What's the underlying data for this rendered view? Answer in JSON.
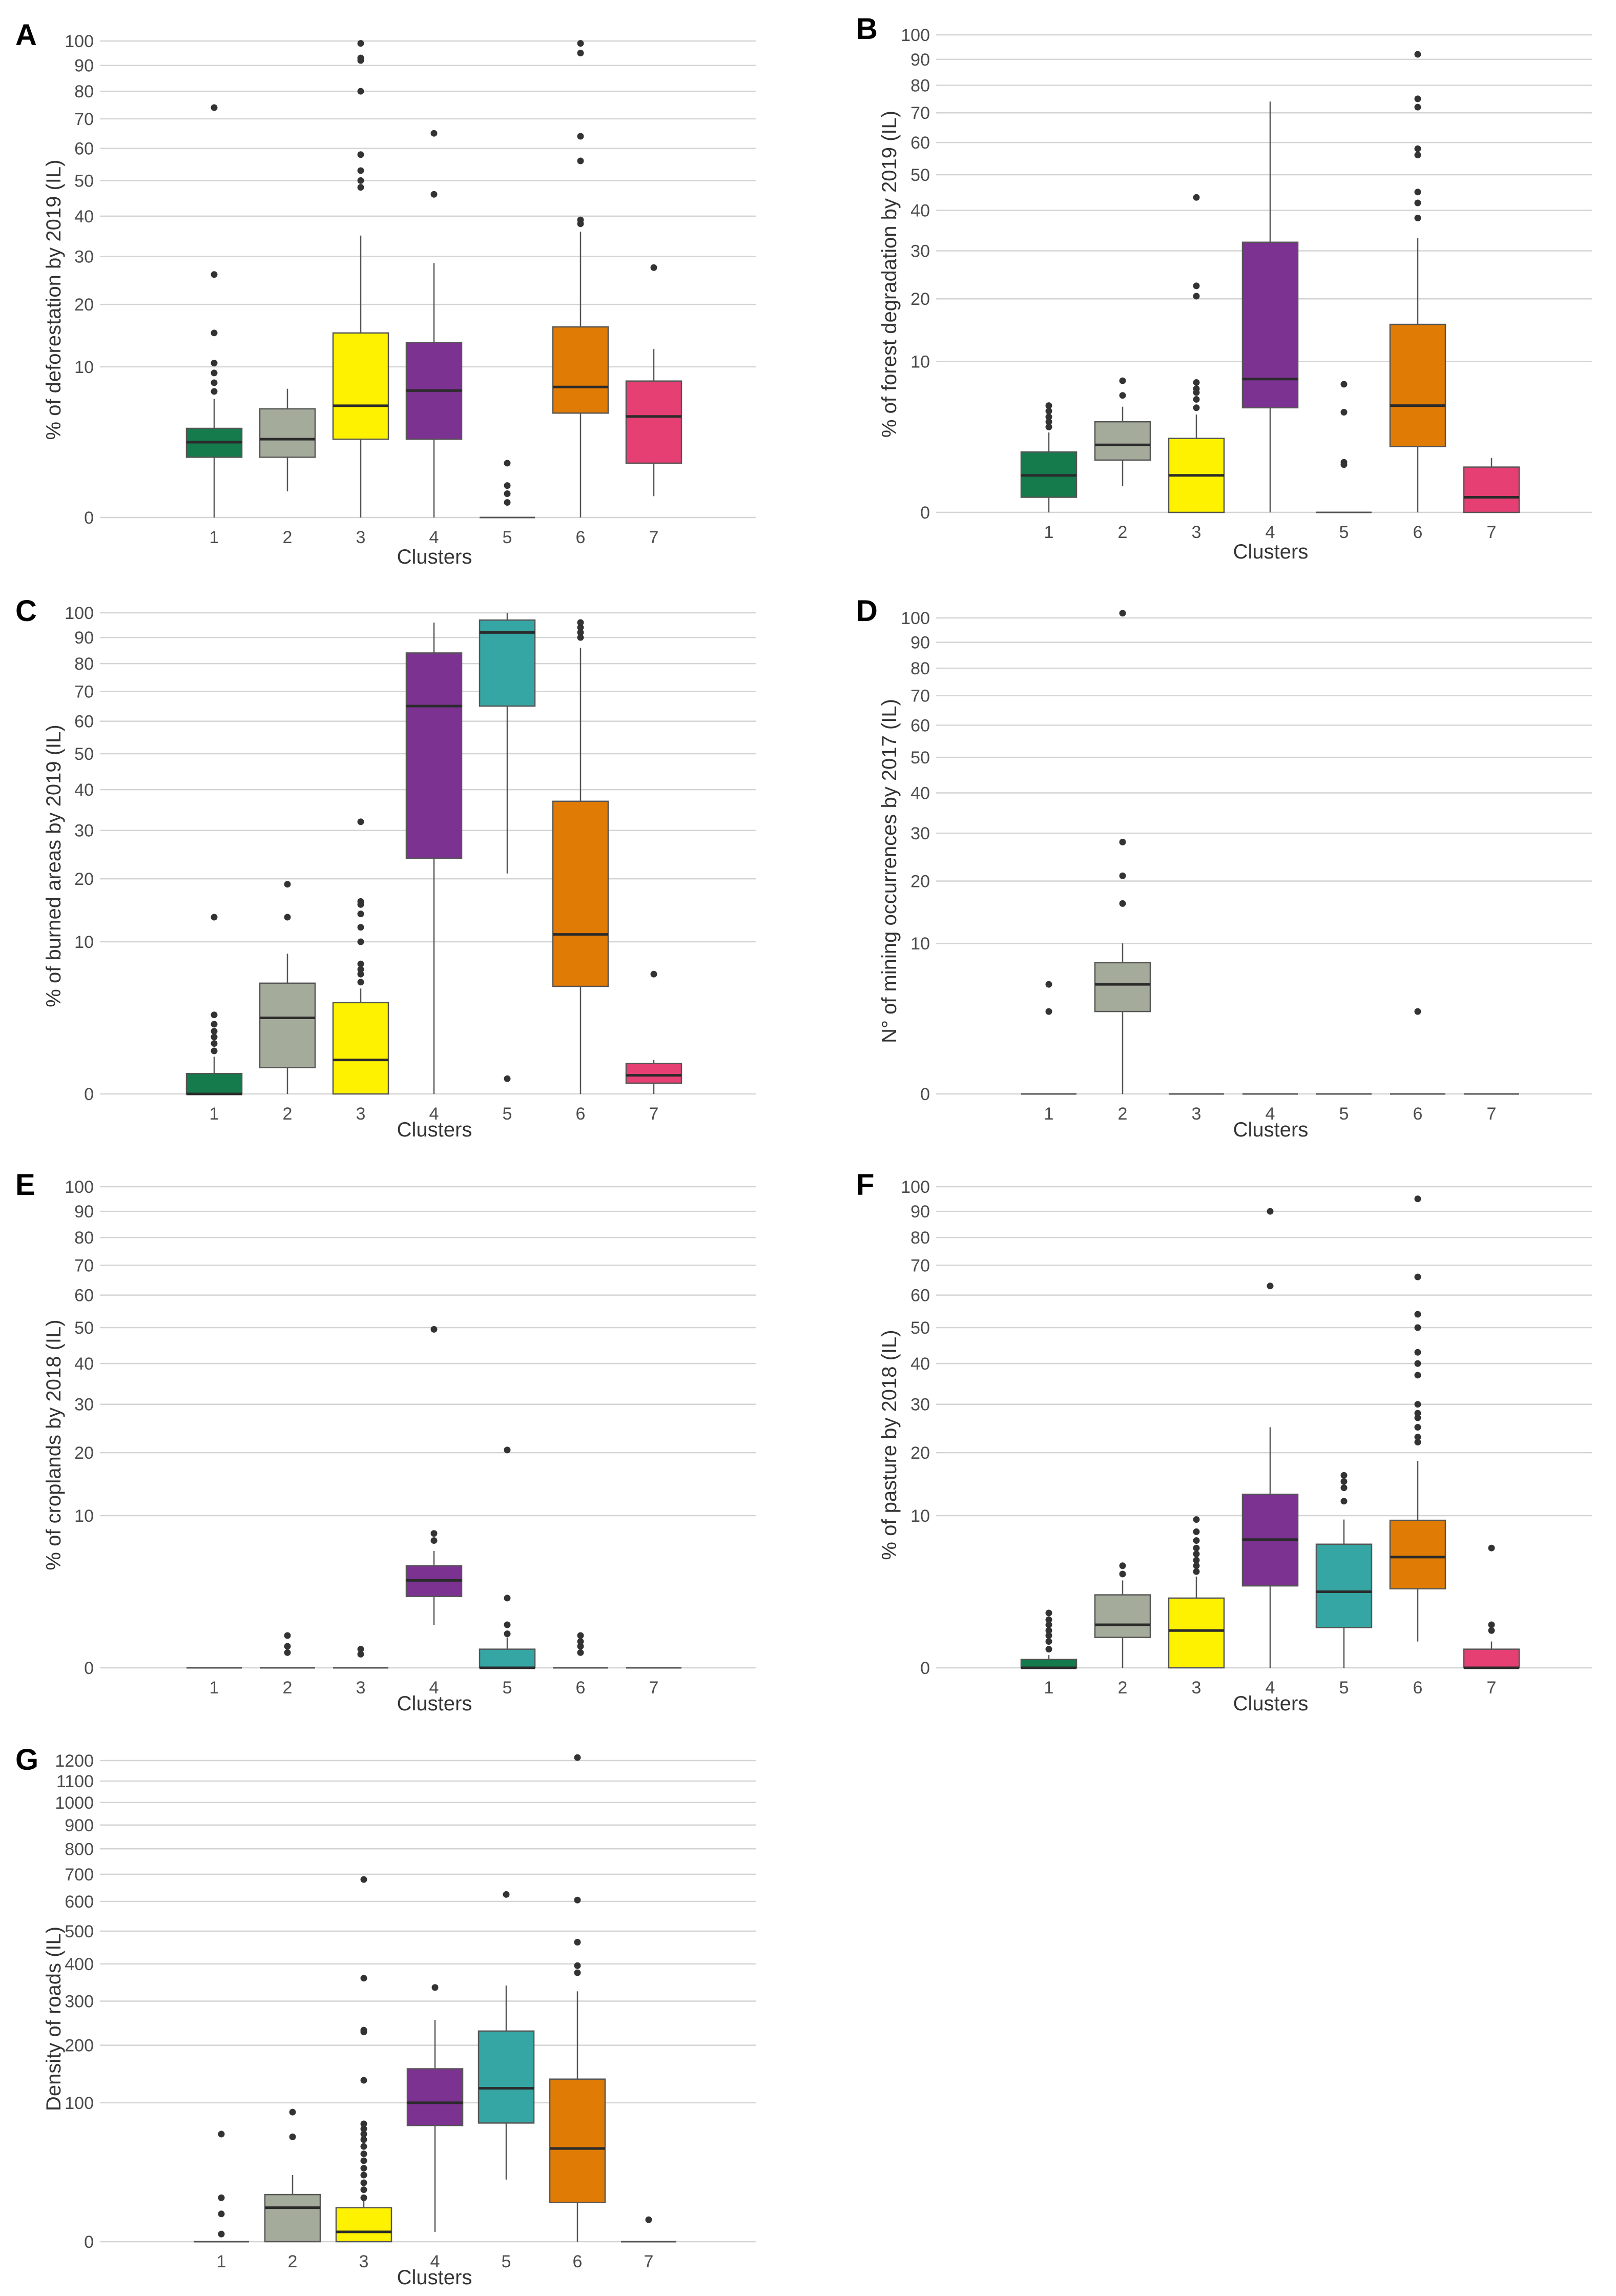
{
  "figure": {
    "x_label": "Clusters"
  },
  "cluster_colors": [
    "#157a4c",
    "#a4ab9a",
    "#fff200",
    "#7b3291",
    "#35a6a3",
    "#e07b05",
    "#e63f74"
  ],
  "chart_data": [
    {
      "type": "boxplot",
      "panel": "A",
      "title": "",
      "xlabel": "Clusters",
      "ylabel": "% of deforestation by 2019 (IL)",
      "yscale": "sqrt",
      "ylim": [
        0,
        100
      ],
      "y_ticks": [
        0,
        10,
        20,
        30,
        40,
        50,
        60,
        70,
        80,
        90,
        100
      ],
      "categories": [
        "1",
        "2",
        "3",
        "4",
        "5",
        "6",
        "7"
      ],
      "boxes": [
        {
          "cluster": "1",
          "q1": 1.6,
          "median": 2.5,
          "q3": 3.5,
          "wlo": 0,
          "whi": 6.2,
          "outliers": [
            7,
            8,
            9.2,
            10.5,
            15,
            26,
            74
          ]
        },
        {
          "cluster": "2",
          "q1": 1.6,
          "median": 2.7,
          "q3": 5.2,
          "wlo": 0.3,
          "whi": 7.3,
          "outliers": []
        },
        {
          "cluster": "3",
          "q1": 2.7,
          "median": 5.5,
          "q3": 15,
          "wlo": 0,
          "whi": 35,
          "outliers": [
            48,
            50,
            53,
            58,
            80,
            92,
            93,
            99
          ]
        },
        {
          "cluster": "4",
          "q1": 2.7,
          "median": 7.1,
          "q3": 13.5,
          "wlo": 0,
          "whi": 28.5,
          "outliers": [
            46,
            65
          ]
        },
        {
          "cluster": "5",
          "q1": 0,
          "median": 0,
          "q3": 0,
          "wlo": 0,
          "whi": 0,
          "outliers": [
            0.1,
            0.25,
            0.45,
            1.3
          ]
        },
        {
          "cluster": "6",
          "q1": 4.8,
          "median": 7.5,
          "q3": 16,
          "wlo": 0,
          "whi": 36,
          "outliers": [
            38,
            39,
            56,
            64,
            95,
            99
          ]
        },
        {
          "cluster": "7",
          "q1": 1.3,
          "median": 4.5,
          "q3": 8.2,
          "wlo": 0.2,
          "whi": 12.5,
          "outliers": [
            27.5
          ]
        }
      ]
    },
    {
      "type": "boxplot",
      "panel": "B",
      "title": "",
      "xlabel": "Clusters",
      "ylabel": "% of forest degradation by 2019 (IL)",
      "yscale": "sqrt",
      "ylim": [
        0,
        100
      ],
      "y_ticks": [
        0,
        10,
        20,
        30,
        40,
        50,
        60,
        70,
        80,
        90,
        100
      ],
      "categories": [
        "1",
        "2",
        "3",
        "4",
        "5",
        "6",
        "7"
      ],
      "boxes": [
        {
          "cluster": "1",
          "q1": 0.1,
          "median": 0.6,
          "q3": 1.6,
          "wlo": 0,
          "whi": 2.8,
          "outliers": [
            3.2,
            3.6,
            4,
            4.5,
            5
          ]
        },
        {
          "cluster": "2",
          "q1": 1.2,
          "median": 2,
          "q3": 3.6,
          "wlo": 0.3,
          "whi": 4.9,
          "outliers": [
            6,
            7.6
          ]
        },
        {
          "cluster": "3",
          "q1": 0,
          "median": 0.6,
          "q3": 2.4,
          "wlo": 0,
          "whi": 4.2,
          "outliers": [
            4.8,
            5.6,
            6.3,
            6.7,
            7.4,
            20.5,
            22.5,
            43.5
          ]
        },
        {
          "cluster": "4",
          "q1": 4.8,
          "median": 7.8,
          "q3": 32,
          "wlo": 0,
          "whi": 74,
          "outliers": []
        },
        {
          "cluster": "5",
          "q1": 0,
          "median": 0,
          "q3": 0,
          "wlo": 0,
          "whi": 0,
          "outliers": [
            1,
            1.1,
            4.4,
            7.2
          ]
        },
        {
          "cluster": "6",
          "q1": 1.9,
          "median": 5,
          "q3": 15.5,
          "wlo": 0,
          "whi": 33,
          "outliers": [
            38,
            42,
            45,
            56,
            58,
            72,
            75,
            92
          ]
        },
        {
          "cluster": "7",
          "q1": 0,
          "median": 0.1,
          "q3": 0.9,
          "wlo": 0,
          "whi": 1.3,
          "outliers": []
        }
      ]
    },
    {
      "type": "boxplot",
      "panel": "C",
      "title": "",
      "xlabel": "Clusters",
      "ylabel": "% of burned areas by 2019 (IL)",
      "yscale": "sqrt",
      "ylim": [
        0,
        100
      ],
      "y_ticks": [
        0,
        10,
        20,
        30,
        40,
        50,
        60,
        70,
        80,
        90,
        100
      ],
      "categories": [
        "1",
        "2",
        "3",
        "4",
        "5",
        "6",
        "7"
      ],
      "boxes": [
        {
          "cluster": "1",
          "q1": 0,
          "median": 0,
          "q3": 0.18,
          "wlo": 0,
          "whi": 0.6,
          "outliers": [
            0.8,
            1.1,
            1.4,
            1.7,
            2.1,
            2.7,
            13.5
          ]
        },
        {
          "cluster": "2",
          "q1": 0.3,
          "median": 2.5,
          "q3": 5.3,
          "wlo": 0,
          "whi": 8.5,
          "outliers": [
            13.5,
            19
          ]
        },
        {
          "cluster": "3",
          "q1": 0,
          "median": 0.5,
          "q3": 3.6,
          "wlo": 0,
          "whi": 4.8,
          "outliers": [
            5.4,
            6.2,
            6.7,
            7.3,
            10,
            12,
            14,
            15.5,
            16,
            32
          ]
        },
        {
          "cluster": "4",
          "q1": 24,
          "median": 65,
          "q3": 84,
          "wlo": 0,
          "whi": 96,
          "outliers": []
        },
        {
          "cluster": "5",
          "q1": 65,
          "median": 92,
          "q3": 97,
          "wlo": 21,
          "whi": 100,
          "outliers": [
            0.1
          ]
        },
        {
          "cluster": "6",
          "q1": 5,
          "median": 11,
          "q3": 37,
          "wlo": 0,
          "whi": 86,
          "outliers": [
            90,
            92,
            94,
            96
          ]
        },
        {
          "cluster": "7",
          "q1": 0.05,
          "median": 0.15,
          "q3": 0.4,
          "wlo": 0,
          "whi": 0.5,
          "outliers": [
            6.2
          ]
        }
      ]
    },
    {
      "type": "boxplot",
      "panel": "D",
      "title": "",
      "xlabel": "Clusters",
      "ylabel": "N° of mining occurrences by 2017 (IL)",
      "yscale": "sqrt",
      "ylim": [
        0,
        100
      ],
      "y_ticks": [
        0,
        10,
        20,
        30,
        40,
        50,
        60,
        70,
        80,
        90,
        100
      ],
      "categories": [
        "1",
        "2",
        "3",
        "4",
        "5",
        "6",
        "7"
      ],
      "boxes": [
        {
          "cluster": "1",
          "q1": 0,
          "median": 0,
          "q3": 0,
          "wlo": 0,
          "whi": 0,
          "outliers": [
            3,
            5.3
          ]
        },
        {
          "cluster": "2",
          "q1": 3,
          "median": 5.3,
          "q3": 7.6,
          "wlo": 0,
          "whi": 10,
          "outliers": [
            16,
            21,
            28,
            102
          ]
        },
        {
          "cluster": "3",
          "q1": 0,
          "median": 0,
          "q3": 0,
          "wlo": 0,
          "whi": 0,
          "outliers": []
        },
        {
          "cluster": "4",
          "q1": 0,
          "median": 0,
          "q3": 0,
          "wlo": 0,
          "whi": 0,
          "outliers": []
        },
        {
          "cluster": "5",
          "q1": 0,
          "median": 0,
          "q3": 0,
          "wlo": 0,
          "whi": 0,
          "outliers": []
        },
        {
          "cluster": "6",
          "q1": 0,
          "median": 0,
          "q3": 0,
          "wlo": 0,
          "whi": 0,
          "outliers": [
            3
          ]
        },
        {
          "cluster": "7",
          "q1": 0,
          "median": 0,
          "q3": 0,
          "wlo": 0,
          "whi": 0,
          "outliers": []
        }
      ]
    },
    {
      "type": "boxplot",
      "panel": "E",
      "title": "",
      "xlabel": "Clusters",
      "ylabel": "% of croplands by 2018 (IL)",
      "yscale": "sqrt",
      "ylim": [
        0,
        100
      ],
      "y_ticks": [
        0,
        10,
        20,
        30,
        40,
        50,
        60,
        70,
        80,
        90,
        100
      ],
      "categories": [
        "1",
        "2",
        "3",
        "4",
        "5",
        "6",
        "7"
      ],
      "boxes": [
        {
          "cluster": "1",
          "q1": 0,
          "median": 0,
          "q3": 0,
          "wlo": 0,
          "whi": 0,
          "outliers": []
        },
        {
          "cluster": "2",
          "q1": 0,
          "median": 0,
          "q3": 0,
          "wlo": 0,
          "whi": 0,
          "outliers": [
            0.1,
            0.2,
            0.45
          ]
        },
        {
          "cluster": "3",
          "q1": 0,
          "median": 0,
          "q3": 0,
          "wlo": 0,
          "whi": 0,
          "outliers": [
            0.08,
            0.15
          ]
        },
        {
          "cluster": "4",
          "q1": 2.2,
          "median": 3.3,
          "q3": 4.5,
          "wlo": 0.8,
          "whi": 5.9,
          "outliers": [
            7,
            7.8,
            49.5
          ]
        },
        {
          "cluster": "5",
          "q1": 0,
          "median": 0,
          "q3": 0.15,
          "wlo": 0,
          "whi": 0.4,
          "outliers": [
            0.5,
            0.8,
            2.1,
            20.5
          ]
        },
        {
          "cluster": "6",
          "q1": 0,
          "median": 0,
          "q3": 0,
          "wlo": 0,
          "whi": 0,
          "outliers": [
            0.1,
            0.2,
            0.3,
            0.45
          ]
        },
        {
          "cluster": "7",
          "q1": 0,
          "median": 0,
          "q3": 0,
          "wlo": 0,
          "whi": 0,
          "outliers": []
        }
      ]
    },
    {
      "type": "boxplot",
      "panel": "F",
      "title": "",
      "xlabel": "Clusters",
      "ylabel": "% of pasture by 2018 (IL)",
      "yscale": "sqrt",
      "ylim": [
        0,
        100
      ],
      "y_ticks": [
        0,
        10,
        20,
        30,
        40,
        50,
        60,
        70,
        80,
        90,
        100
      ],
      "categories": [
        "1",
        "2",
        "3",
        "4",
        "5",
        "6",
        "7"
      ],
      "boxes": [
        {
          "cluster": "1",
          "q1": 0,
          "median": 0,
          "q3": 0.03,
          "wlo": 0,
          "whi": 0.07,
          "outliers": [
            0.15,
            0.3,
            0.45,
            0.6,
            0.8,
            1,
            1.3
          ]
        },
        {
          "cluster": "2",
          "q1": 0.4,
          "median": 0.8,
          "q3": 2.3,
          "wlo": 0,
          "whi": 3.3,
          "outliers": [
            3.8,
            4.5
          ]
        },
        {
          "cluster": "3",
          "q1": 0,
          "median": 0.6,
          "q3": 2.1,
          "wlo": 0,
          "whi": 3.6,
          "outliers": [
            4,
            4.5,
            5,
            5.6,
            6.2,
            7,
            8,
            9.5
          ]
        },
        {
          "cluster": "4",
          "q1": 2.9,
          "median": 7.1,
          "q3": 13,
          "wlo": 0,
          "whi": 25,
          "outliers": [
            63,
            90
          ]
        },
        {
          "cluster": "5",
          "q1": 0.7,
          "median": 2.5,
          "q3": 6.6,
          "wlo": 0,
          "whi": 9.5,
          "outliers": [
            12,
            14,
            15,
            16
          ]
        },
        {
          "cluster": "6",
          "q1": 2.7,
          "median": 5.3,
          "q3": 9.4,
          "wlo": 0.3,
          "whi": 18.5,
          "outliers": [
            22,
            23,
            25,
            27,
            28,
            30,
            37,
            40,
            43,
            50,
            54,
            66,
            95
          ]
        },
        {
          "cluster": "7",
          "q1": 0,
          "median": 0,
          "q3": 0.15,
          "wlo": 0,
          "whi": 0.3,
          "outliers": [
            0.6,
            0.8,
            6.2
          ]
        }
      ]
    },
    {
      "type": "boxplot",
      "panel": "G",
      "title": "",
      "xlabel": "Clusters",
      "ylabel": "Density of roads (IL)",
      "yscale": "sqrt",
      "ylim": [
        0,
        1200
      ],
      "y_ticks": [
        0,
        100,
        200,
        300,
        400,
        500,
        600,
        700,
        800,
        900,
        1000,
        1100,
        1200
      ],
      "categories": [
        "1",
        "2",
        "3",
        "4",
        "5",
        "6",
        "7"
      ],
      "boxes": [
        {
          "cluster": "1",
          "q1": 0,
          "median": 0,
          "q3": 0,
          "wlo": 0,
          "whi": 0,
          "outliers": [
            0.3,
            4,
            10,
            60
          ]
        },
        {
          "cluster": "2",
          "q1": 0,
          "median": 6,
          "q3": 11.5,
          "wlo": 0,
          "whi": 23,
          "outliers": [
            57,
            87
          ]
        },
        {
          "cluster": "3",
          "q1": 0,
          "median": 0.5,
          "q3": 6,
          "wlo": 0,
          "whi": 8.5,
          "outliers": [
            10,
            14,
            18,
            23,
            28,
            34,
            40,
            47,
            54,
            60,
            66,
            72,
            135,
            228,
            232,
            360,
            680
          ]
        },
        {
          "cluster": "4",
          "q1": 70,
          "median": 100,
          "q3": 155,
          "wlo": 0.5,
          "whi": 255,
          "outliers": [
            335
          ]
        },
        {
          "cluster": "5",
          "q1": 73,
          "median": 122,
          "q3": 230,
          "wlo": 20,
          "whi": 340,
          "outliers": [
            625
          ]
        },
        {
          "cluster": "6",
          "q1": 8,
          "median": 45,
          "q3": 137,
          "wlo": 0,
          "whi": 325,
          "outliers": [
            375,
            395,
            465,
            605,
            1215
          ]
        },
        {
          "cluster": "7",
          "q1": 0,
          "median": 0,
          "q3": 0,
          "wlo": 0,
          "whi": 0,
          "outliers": [
            2.5
          ]
        }
      ]
    }
  ]
}
